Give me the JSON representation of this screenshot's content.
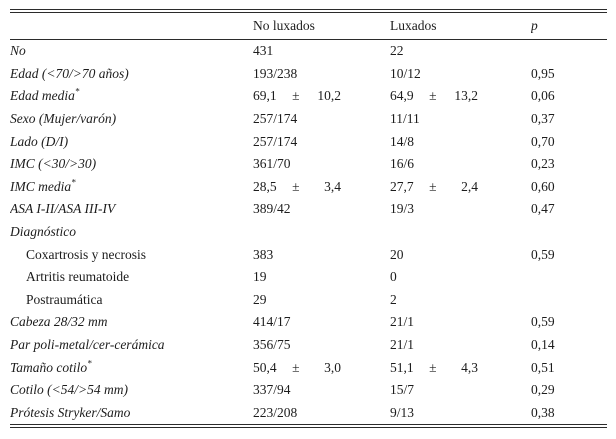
{
  "headers": {
    "col1": "No luxados",
    "col2": "Luxados",
    "p": "p"
  },
  "rows": [
    {
      "label": "No",
      "nl": "431",
      "lx": "22",
      "p": ""
    },
    {
      "label": "Edad (<70/>70 años)",
      "nl": "193/238",
      "lx": "10/12",
      "p": "0,95"
    },
    {
      "label": "Edad media",
      "sup": "*",
      "nl": {
        "v": "69,1",
        "pm": "±",
        "s": "10,2"
      },
      "lx": {
        "v": "64,9",
        "pm": "±",
        "s": "13,2"
      },
      "p": "0,06"
    },
    {
      "label": "Sexo (Mujer/varón)",
      "nl": "257/174",
      "lx": "11/11",
      "p": "0,37"
    },
    {
      "label": "Lado (D/I)",
      "nl": "257/174",
      "lx": "14/8",
      "p": "0,70"
    },
    {
      "label": "IMC (<30/>30)",
      "nl": "361/70",
      "lx": "16/6",
      "p": "0,23"
    },
    {
      "label": "IMC media",
      "sup": "*",
      "nl": {
        "v": "28,5",
        "pm": "±",
        "s": "3,4"
      },
      "lx": {
        "v": "27,7",
        "pm": "±",
        "s": "2,4"
      },
      "p": "0,60"
    },
    {
      "label": "ASA I-II/ASA III-IV",
      "nl": "389/42",
      "lx": "19/3",
      "p": "0,47"
    },
    {
      "label": "Diagnóstico",
      "nl": "",
      "lx": "",
      "p": ""
    },
    {
      "label": "Coxartrosis y necrosis",
      "nl": "383",
      "lx": "20",
      "p": "0,59"
    },
    {
      "label": "Artritis reumatoide",
      "nl": "19",
      "lx": "0",
      "p": ""
    },
    {
      "label": "Postraumática",
      "nl": "29",
      "lx": "2",
      "p": ""
    },
    {
      "label": "Cabeza 28/32 mm",
      "nl": "414/17",
      "lx": "21/1",
      "p": "0,59"
    },
    {
      "label": "Par poli-metal/cer-cerámica",
      "nl": "356/75",
      "lx": "21/1",
      "p": "0,14"
    },
    {
      "label": "Tamaño cotilo",
      "sup": "*",
      "nl": {
        "v": "50,4",
        "pm": "±",
        "s": "3,0"
      },
      "lx": {
        "v": "51,1",
        "pm": "±",
        "s": "4,3"
      },
      "p": "0,51"
    },
    {
      "label": "Cotilo (<54/>54 mm)",
      "nl": "337/94",
      "lx": "15/7",
      "p": "0,29"
    },
    {
      "label": "Prótesis Stryker/Samo",
      "nl": "223/208",
      "lx": "9/13",
      "p": "0,38"
    }
  ]
}
